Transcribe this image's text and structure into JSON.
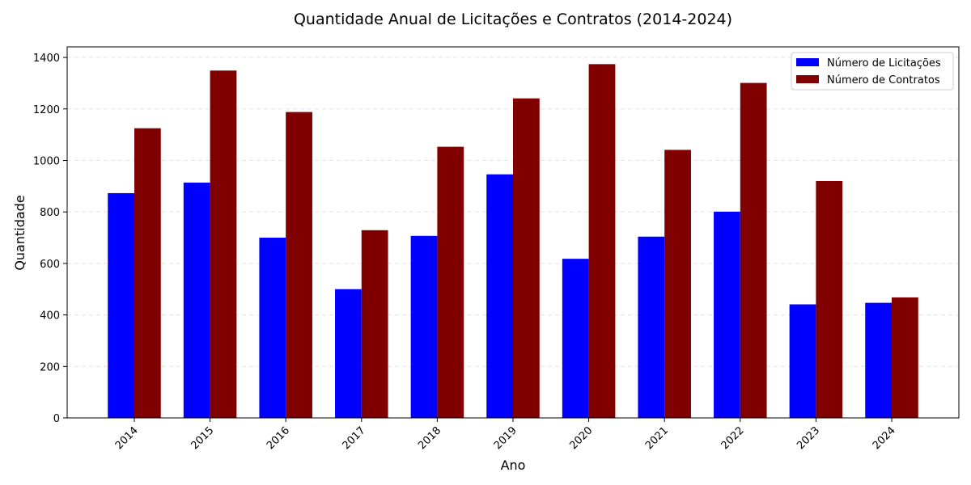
{
  "chart_data": {
    "type": "bar",
    "title": "Quantidade Anual de Licitações e Contratos (2014-2024)",
    "xlabel": "Ano",
    "ylabel": "Quantidade",
    "categories": [
      "2014",
      "2015",
      "2016",
      "2017",
      "2018",
      "2019",
      "2020",
      "2021",
      "2022",
      "2023",
      "2024"
    ],
    "series": [
      {
        "name": "Número de Licitações",
        "color": "#0000ff",
        "values": [
          873,
          914,
          700,
          500,
          707,
          946,
          618,
          704,
          801,
          441,
          447
        ]
      },
      {
        "name": "Número de Contratos",
        "color": "#800000",
        "values": [
          1125,
          1349,
          1188,
          729,
          1053,
          1241,
          1374,
          1041,
          1301,
          920,
          468
        ]
      }
    ],
    "ylim": [
      0,
      1441
    ],
    "yticks": [
      0,
      200,
      400,
      600,
      800,
      1000,
      1200,
      1400
    ],
    "grid": true,
    "legend_position": "top-right"
  }
}
